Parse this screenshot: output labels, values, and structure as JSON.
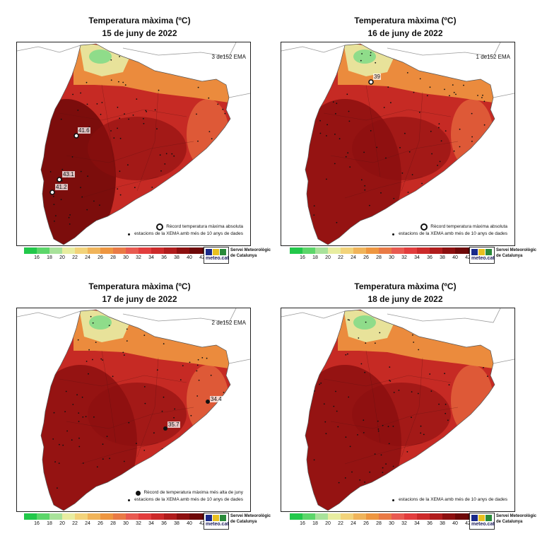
{
  "panels": [
    {
      "title": "Temperatura màxima (ºC)",
      "date": "15 de juny de 2022",
      "ema_count": "3 de152 EMA",
      "legend_record": "Rècord temperatura màxima absoluta",
      "legend_stations": "estacions de la XEMA amb més de 10 anys de dades",
      "records": [
        {
          "value": "41.6",
          "marker": "ring"
        },
        {
          "value": "43.1",
          "marker": "ring"
        },
        {
          "value": "41.2",
          "marker": "ring"
        }
      ]
    },
    {
      "title": "Temperatura màxima (ºC)",
      "date": "16 de juny de 2022",
      "ema_count": "1 de152 EMA",
      "legend_record": "Rècord temperatura màxima absoluta",
      "legend_stations": "estacions de la XEMA amb més de 10 anys de dades",
      "records": [
        {
          "value": "39",
          "marker": "ring"
        }
      ]
    },
    {
      "title": "Temperatura màxima (ºC)",
      "date": "17 de juny de 2022",
      "ema_count": "2 de152 EMA",
      "legend_record": "Rècord de temperatura màxima més alta de juny",
      "legend_stations": "estacions de la XEMA amb més de 10 anys de dades",
      "records": [
        {
          "value": "34.4",
          "marker": "dot"
        },
        {
          "value": "35.7",
          "marker": "dot"
        }
      ]
    },
    {
      "title": "Temperatura màxima (ºC)",
      "date": "18 de juny de 2022",
      "ema_count": "",
      "legend_record": "",
      "legend_stations": "estacions de la XEMA amb més de 10 anys de dades",
      "records": []
    }
  ],
  "colorbar": {
    "colors": [
      "#22c84a",
      "#5cd66a",
      "#a8e29a",
      "#e8eda0",
      "#f2d37a",
      "#f0b45a",
      "#ee9640",
      "#e97a45",
      "#e85a50",
      "#e23d3d",
      "#cc2a2a",
      "#b01c1c",
      "#8c0f0f",
      "#6e0808",
      "#520404"
    ],
    "ticks": [
      "16",
      "18",
      "20",
      "22",
      "24",
      "26",
      "28",
      "30",
      "32",
      "34",
      "36",
      "38",
      "40",
      "42"
    ]
  },
  "logo": {
    "name": "meteo.cat",
    "service_line1": "Servei Meteorològic",
    "service_line2": "de Catalunya"
  }
}
